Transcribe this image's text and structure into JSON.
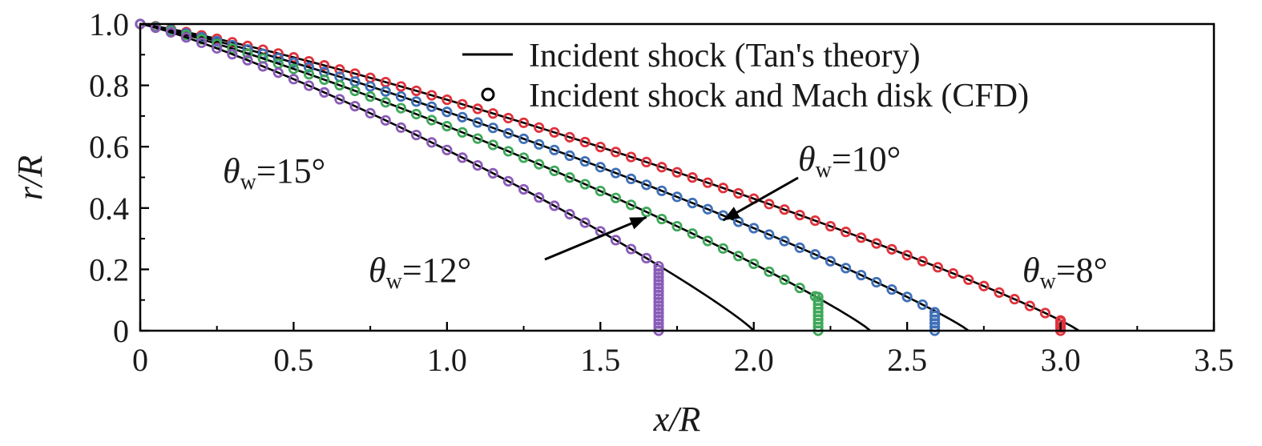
{
  "chart_data": {
    "type": "line",
    "xlabel": "x/R",
    "ylabel": "r/R",
    "xlim": [
      0,
      3.5
    ],
    "ylim": [
      0,
      1.0
    ],
    "x_ticks": [
      "0",
      "0.5",
      "1.0",
      "1.5",
      "2.0",
      "2.5",
      "3.0",
      "3.5"
    ],
    "y_ticks": [
      "0",
      "0.2",
      "0.4",
      "0.6",
      "0.8",
      "1.0"
    ],
    "legend": {
      "placement": "top-right",
      "entries": [
        {
          "marker": "line",
          "label": "Incident shock (Tan's theory)"
        },
        {
          "marker": "circle",
          "label": "Incident shock and Mach disk (CFD)"
        }
      ]
    },
    "series": [
      {
        "name": "θw=8°",
        "wedge_deg": 8,
        "color": "#e0323c",
        "theory_end_x": 3.06,
        "cfd_end_x": 3.0,
        "mach_disk": {
          "x": 3.0,
          "r_top": 0.03
        }
      },
      {
        "name": "θw=10°",
        "wedge_deg": 10,
        "color": "#3f70b8",
        "theory_end_x": 2.7,
        "cfd_end_x": 2.59,
        "mach_disk": {
          "x": 2.59,
          "r_top": 0.06
        }
      },
      {
        "name": "θw=12°",
        "wedge_deg": 12,
        "color": "#3fa85a",
        "theory_end_x": 2.38,
        "cfd_end_x": 2.21,
        "mach_disk": {
          "x": 2.21,
          "r_top": 0.11
        }
      },
      {
        "name": "θw=15°",
        "wedge_deg": 15,
        "color": "#8a5cb8",
        "theory_end_x": 2.0,
        "cfd_end_x": 1.69,
        "mach_disk": {
          "x": 1.69,
          "r_top": 0.21
        }
      }
    ],
    "annotations": [
      {
        "theta": "θ",
        "sub": "w",
        "text": "=15°",
        "series": "θw=15°",
        "arrow": false
      },
      {
        "theta": "θ",
        "sub": "w",
        "text": "=10°",
        "series": "θw=10°",
        "arrow": true,
        "arrow_tip": [
          1.9,
          0.36
        ]
      },
      {
        "theta": "θ",
        "sub": "w",
        "text": "=12°",
        "series": "θw=12°",
        "arrow": true,
        "arrow_tip": [
          1.65,
          0.37
        ]
      },
      {
        "theta": "θ",
        "sub": "w",
        "text": "=8°",
        "series": "θw=8°",
        "arrow": false
      }
    ]
  }
}
